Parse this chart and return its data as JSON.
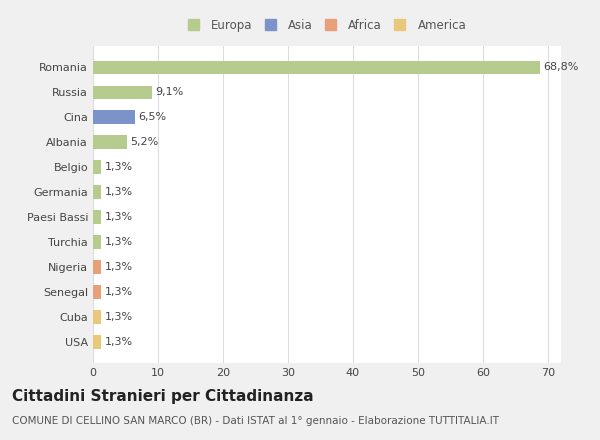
{
  "countries": [
    "Romania",
    "Russia",
    "Cina",
    "Albania",
    "Belgio",
    "Germania",
    "Paesi Bassi",
    "Turchia",
    "Nigeria",
    "Senegal",
    "Cuba",
    "USA"
  ],
  "values": [
    68.8,
    9.1,
    6.5,
    5.2,
    1.3,
    1.3,
    1.3,
    1.3,
    1.3,
    1.3,
    1.3,
    1.3
  ],
  "labels": [
    "68,8%",
    "9,1%",
    "6,5%",
    "5,2%",
    "1,3%",
    "1,3%",
    "1,3%",
    "1,3%",
    "1,3%",
    "1,3%",
    "1,3%",
    "1,3%"
  ],
  "colors": [
    "#b5cc8e",
    "#b5cc8e",
    "#7b93c9",
    "#b5cc8e",
    "#b5cc8e",
    "#b5cc8e",
    "#b5cc8e",
    "#b5cc8e",
    "#e8a07a",
    "#e8a07a",
    "#e8c87a",
    "#e8c87a"
  ],
  "legend_labels": [
    "Europa",
    "Asia",
    "Africa",
    "America"
  ],
  "legend_colors": [
    "#b5cc8e",
    "#7b93c9",
    "#e8a07a",
    "#e8c87a"
  ],
  "title": "Cittadini Stranieri per Cittadinanza",
  "subtitle": "COMUNE DI CELLINO SAN MARCO (BR) - Dati ISTAT al 1° gennaio - Elaborazione TUTTITALIA.IT",
  "xlim": [
    0,
    72
  ],
  "xticks": [
    0,
    10,
    20,
    30,
    40,
    50,
    60,
    70
  ],
  "fig_background": "#f0f0f0",
  "plot_background": "#ffffff",
  "grid_color": "#dddddd",
  "title_fontsize": 11,
  "subtitle_fontsize": 7.5,
  "label_fontsize": 8,
  "tick_fontsize": 8,
  "legend_fontsize": 8.5
}
